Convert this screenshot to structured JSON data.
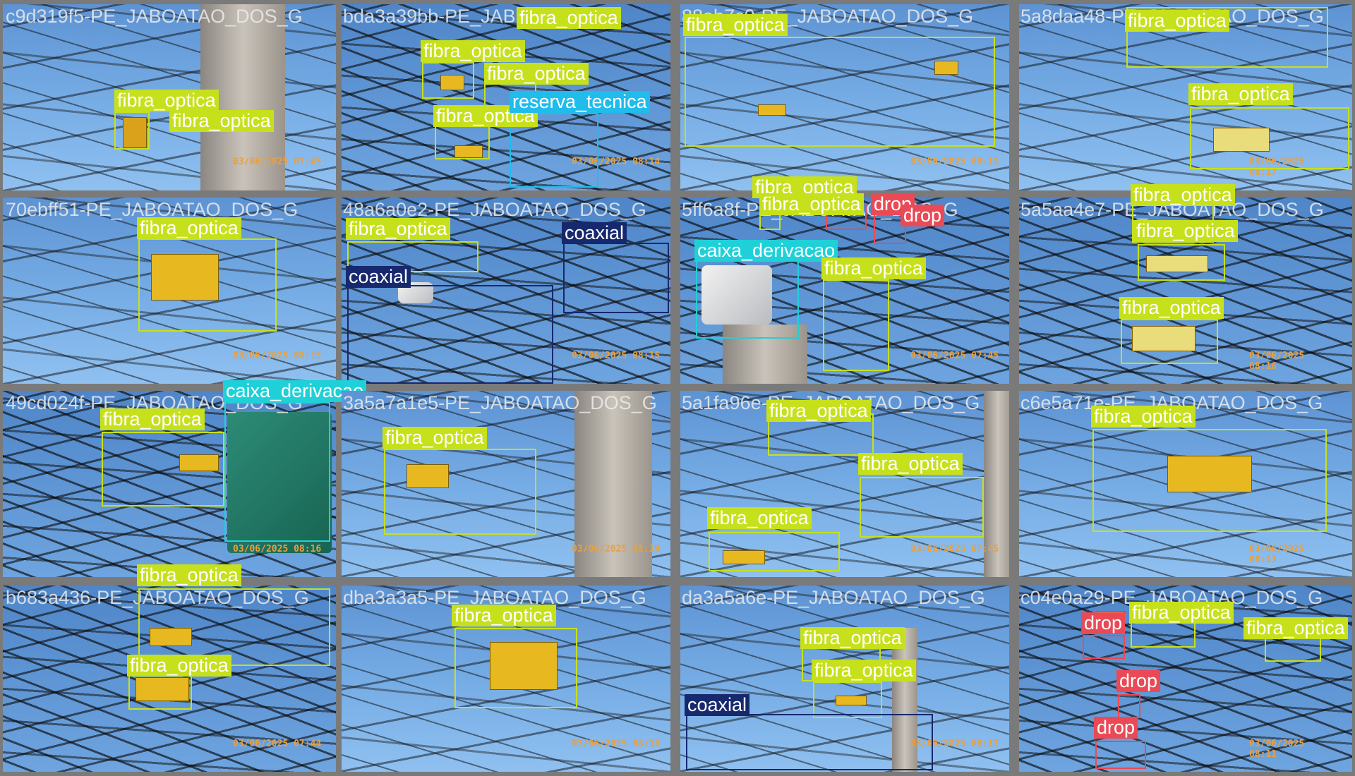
{
  "colors": {
    "fibra_optica": "#c6e01c",
    "reserva_tecnica": "#1fbcec",
    "coaxial": "#16286e",
    "caixa_derivacao": "#20d0d8",
    "drop": "#ea4a55",
    "timestamp": "#e8a040"
  },
  "tiles": [
    {
      "title": "c9d319f5-PE_JABOATAO_DOS_G",
      "timestamp": "03/06/2025 07:45"
    },
    {
      "title": "bda3a39bb-PE_JAB",
      "timestamp": "03/06/2025 08:14"
    },
    {
      "title": "88ab7c0-PE_JABOATAO_DOS_G",
      "timestamp": "03/06/2025 08:13"
    },
    {
      "title": "5a8daa48-PE_JABOATAO_DOS_G",
      "timestamp": "03/06/2025 08:17"
    },
    {
      "title": "70ebff51-PE_JABOATAO_DOS_G",
      "timestamp": "03/06/2025 08:15"
    },
    {
      "title": "48a6a0e2-PE_JABOATAO_DOS_G",
      "timestamp": "03/06/2025 08:15"
    },
    {
      "title": "5ff6a8f-PE_JABOATAO_DOS_G",
      "timestamp": "03/06/2025 07:45"
    },
    {
      "title": "5a5aa4e7-PE_JABOATAO_DOS_G",
      "timestamp": "03/06/2025 08:16"
    },
    {
      "title": "49cd024f-PE_JABOATAO_DOS_G",
      "timestamp": "03/06/2025 08:16"
    },
    {
      "title": "3a5a7a1e5-PE_JABOATAO_DOS_G",
      "timestamp": "03/06/2025 08:19"
    },
    {
      "title": "5a1fa96e-PE_JABOATAO_DOS_G",
      "timestamp": "03/06/2025 07:45"
    },
    {
      "title": "c6e5a71e-PE_JABOATAO_DOS_G",
      "timestamp": "03/06/2025 08:13"
    },
    {
      "title": "b683a436-PE_JABOATAO_DOS_G",
      "timestamp": "03/06/2025 07:44"
    },
    {
      "title": "dba3a3a5-PE_JABOATAO_DOS_G",
      "timestamp": "03/06/2025 08:15"
    },
    {
      "title": "da3a5a6e-PE_JABOATAO_DOS_G",
      "timestamp": "03/06/2025 08:17"
    },
    {
      "title": "c04e0a29-PE_JABOATAO_DOS_G",
      "timestamp": "03/06/2025 08:11"
    }
  ],
  "labels": {
    "fibra_optica": "fibra_optica",
    "reserva_tecnica": "reserva_tecnica",
    "coaxial": "coaxial",
    "caixa_derivacao": "caixa_derivacao",
    "drop": "drop"
  }
}
